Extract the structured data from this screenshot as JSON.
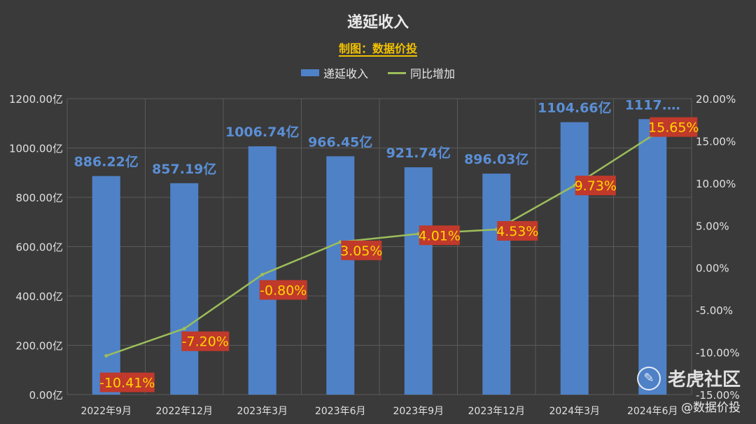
{
  "title": "递延收入",
  "subtitle": "制图：数据价投",
  "watermark": "老虎社区",
  "source": "@数据价投",
  "chart_data": {
    "type": "bar",
    "categories": [
      "2022年9月",
      "2022年12月",
      "2023年3月",
      "2023年6月",
      "2023年9月",
      "2023年12月",
      "2024年3月",
      "2024年6月"
    ],
    "series": [
      {
        "name": "递延收入",
        "type": "bar",
        "axis": "left",
        "values": [
          886.22,
          857.19,
          1006.74,
          966.45,
          921.74,
          896.03,
          1104.66,
          1117.0
        ],
        "labels": [
          "886.22亿",
          "857.19亿",
          "1006.74亿",
          "966.45亿",
          "921.74亿",
          "896.03亿",
          "1104.66亿",
          "1117.…"
        ]
      },
      {
        "name": "同比增加",
        "type": "line",
        "axis": "right",
        "values": [
          -10.41,
          -7.2,
          -0.8,
          3.05,
          4.01,
          4.53,
          9.73,
          15.65
        ],
        "labels": [
          "-10.41%",
          "-7.20%",
          "-0.80%",
          "3.05%",
          "4.01%",
          "4.53%",
          "9.73%",
          "15.65%"
        ]
      }
    ],
    "y_left": {
      "ylim": [
        0,
        1200
      ],
      "ticks": [
        "0.00亿",
        "200.00亿",
        "400.00亿",
        "600.00亿",
        "800.00亿",
        "1000.00亿",
        "1200.00亿"
      ]
    },
    "y_right": {
      "ylim": [
        -15,
        20
      ],
      "ticks": [
        "-15.00%",
        "-10.00%",
        "-5.00%",
        "0.00%",
        "5.00%",
        "10.00%",
        "15.00%",
        "20.00%"
      ]
    },
    "grid": true,
    "legend": "top",
    "colors": {
      "bar": "#4f81c7",
      "line": "#9cbe5a",
      "bar_label": "#5b8fd6",
      "pct_bg": "#c0392b",
      "pct_text": "#ffd700",
      "axis_text": "#e0e0e0"
    }
  }
}
